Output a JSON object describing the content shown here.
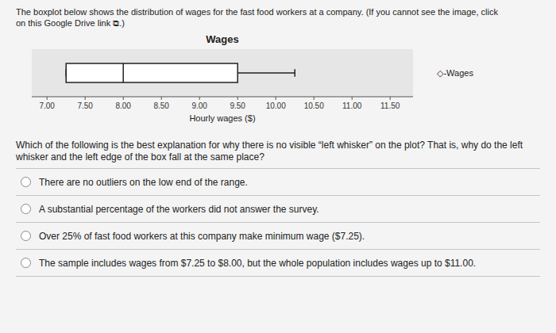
{
  "chart_data": {
    "type": "box",
    "title": "Wages",
    "description": "The boxplot below shows the distribution of wages for the fast food workers at a company. (If you cannot see the image, click\non this Google Drive link ⧉.)",
    "x_label": "Hourly wages ($)",
    "series": [
      {
        "name": "◇-Wages",
        "min": 7.25,
        "q1": 7.25,
        "median": 8.0,
        "q3": 9.5,
        "max": 10.25
      }
    ],
    "xlim": [
      6.8,
      11.8
    ],
    "xticks": [
      {
        "value": 7.0,
        "label": "7.00"
      },
      {
        "value": 7.5,
        "label": "7.50"
      },
      {
        "value": 8.0,
        "label": "8.00"
      },
      {
        "value": 8.5,
        "label": "8.50"
      },
      {
        "value": 9.0,
        "label": "9.00"
      },
      {
        "value": 9.5,
        "label": "9.50"
      },
      {
        "value": 10.0,
        "label": "10.00"
      },
      {
        "value": 10.5,
        "label": "10.50"
      },
      {
        "value": 11.0,
        "label": "11.00"
      },
      {
        "value": 11.5,
        "label": "11.50"
      }
    ],
    "question": "Which of the following is the best explanation for why there is no visible “left whisker” on the plot? That is, why do the left\nwhisker and the left edge of the box fall at the same place?",
    "options": [
      "There are no outliers on the low end of the range.",
      "A substantial percentage of the workers did not answer the survey.",
      "Over 25% of fast food workers at this company make minimum wage ($7.25).",
      "The sample includes wages from $7.25 to $8.00, but the whole population includes wages up to $11.00."
    ]
  }
}
